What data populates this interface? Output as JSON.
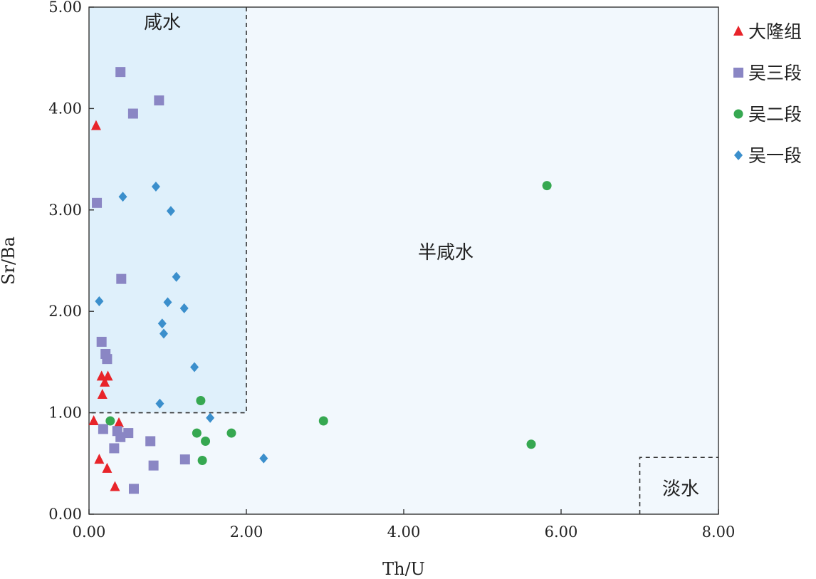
{
  "chart_data": {
    "type": "scatter",
    "xlabel": "Th/U",
    "ylabel": "Sr/Ba",
    "xlim": [
      0,
      8
    ],
    "ylim": [
      0,
      5
    ],
    "x_ticks": [
      "0.00",
      "2.00",
      "4.00",
      "6.00",
      "8.00"
    ],
    "y_ticks": [
      "0.00",
      "1.00",
      "2.00",
      "3.00",
      "4.00",
      "5.00"
    ],
    "grid": false,
    "legend_position": "right",
    "regions": [
      {
        "label": "咸水",
        "x_range": [
          0,
          2
        ],
        "y_range": [
          1,
          5
        ],
        "fill": "#dff0fb"
      },
      {
        "label": "半咸水",
        "fill": "#f2f8fd"
      },
      {
        "label": "淡水",
        "x_range": [
          7,
          8
        ],
        "y_range": [
          0,
          0.56
        ]
      }
    ],
    "series": [
      {
        "name": "大隆组",
        "marker": "triangle",
        "color": "#e8242a",
        "points": [
          [
            0.09,
            3.83
          ],
          [
            0.16,
            1.36
          ],
          [
            0.24,
            1.36
          ],
          [
            0.2,
            1.3
          ],
          [
            0.17,
            1.18
          ],
          [
            0.06,
            0.92
          ],
          [
            0.38,
            0.9
          ],
          [
            0.13,
            0.54
          ],
          [
            0.23,
            0.45
          ],
          [
            0.33,
            0.27
          ]
        ]
      },
      {
        "name": "吴三段",
        "marker": "square",
        "color": "#8a86c4",
        "points": [
          [
            0.4,
            4.36
          ],
          [
            0.89,
            4.08
          ],
          [
            0.56,
            3.95
          ],
          [
            0.1,
            3.07
          ],
          [
            0.41,
            2.32
          ],
          [
            0.16,
            1.7
          ],
          [
            0.21,
            1.58
          ],
          [
            0.23,
            1.53
          ],
          [
            0.18,
            0.84
          ],
          [
            0.36,
            0.82
          ],
          [
            0.4,
            0.76
          ],
          [
            0.5,
            0.8
          ],
          [
            0.78,
            0.72
          ],
          [
            0.32,
            0.65
          ],
          [
            1.22,
            0.54
          ],
          [
            0.82,
            0.48
          ],
          [
            0.57,
            0.25
          ]
        ]
      },
      {
        "name": "吴二段",
        "marker": "circle",
        "color": "#36a851",
        "points": [
          [
            5.82,
            3.24
          ],
          [
            1.42,
            1.12
          ],
          [
            0.27,
            0.92
          ],
          [
            2.98,
            0.92
          ],
          [
            1.37,
            0.8
          ],
          [
            1.81,
            0.8
          ],
          [
            1.48,
            0.72
          ],
          [
            5.62,
            0.69
          ],
          [
            1.44,
            0.53
          ]
        ]
      },
      {
        "name": "吴一段",
        "marker": "diamond",
        "color": "#3b8fcc",
        "points": [
          [
            0.85,
            3.23
          ],
          [
            0.43,
            3.13
          ],
          [
            1.04,
            2.99
          ],
          [
            1.11,
            2.34
          ],
          [
            0.13,
            2.1
          ],
          [
            1.0,
            2.09
          ],
          [
            1.21,
            2.03
          ],
          [
            0.93,
            1.88
          ],
          [
            0.95,
            1.78
          ],
          [
            1.34,
            1.45
          ],
          [
            0.9,
            1.09
          ],
          [
            1.54,
            0.95
          ],
          [
            2.22,
            0.55
          ]
        ]
      }
    ]
  }
}
